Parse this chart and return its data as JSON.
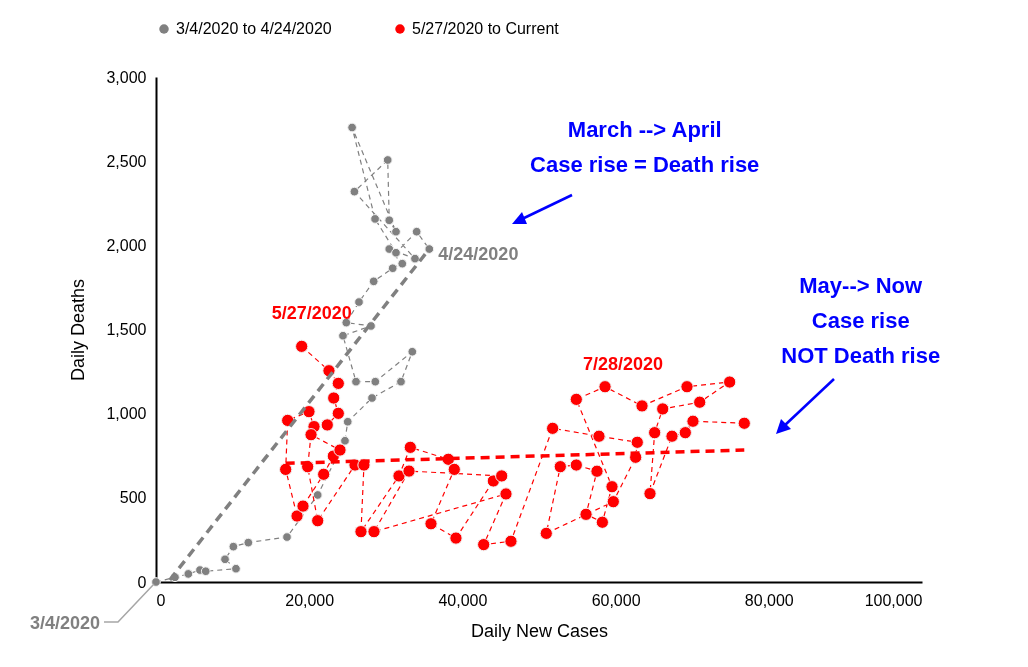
{
  "chart_data": {
    "type": "line",
    "xlabel": "Daily New Cases",
    "ylabel": "Daily Deaths",
    "xlim": [
      0,
      100000
    ],
    "ylim": [
      0,
      3000
    ],
    "xticks": [
      0,
      {
        "value": 20000,
        "label": "20,000"
      },
      {
        "value": 40000,
        "label": "40,000"
      },
      {
        "value": 60000,
        "label": "60,000"
      },
      {
        "value": 80000,
        "label": "80,000"
      },
      {
        "value": 100000,
        "label": "100,000"
      }
    ],
    "yticks": [
      0,
      500,
      {
        "value": 1000,
        "label": "1,000"
      },
      {
        "value": 1500,
        "label": "1,500"
      },
      {
        "value": 2000,
        "label": "2,000"
      },
      {
        "value": 2500,
        "label": "2,500"
      },
      {
        "value": 3000,
        "label": "3,000"
      }
    ],
    "grid": false,
    "legend": "top",
    "marker": "circle",
    "line_style": "dashed",
    "series": [
      {
        "name": "3/4/2020 to 4/24/2020",
        "color": "#808080",
        "x": [
          0,
          2480,
          4220,
          5740,
          6490,
          10440,
          9010,
          10100,
          12050,
          17100,
          21110,
          24670,
          25030,
          28200,
          31980,
          33460,
          28630,
          26110,
          24410,
          28070,
          24840,
          26500,
          28420,
          30900,
          32150,
          30450,
          33810,
          25900,
          30250,
          30450,
          31330,
          25600,
          28600,
          31330,
          34030,
          35680
        ],
        "values": [
          0,
          28,
          48,
          71,
          64,
          79,
          135,
          210,
          234,
          267,
          517,
          839,
          952,
          1093,
          1190,
          1368,
          1190,
          1190,
          1463,
          1521,
          1541,
          1663,
          1786,
          1864,
          1891,
          1978,
          1921,
          2319,
          2507,
          2149,
          2081,
          2700,
          2157,
          1956,
          2081,
          1978
        ]
      },
      {
        "name": "5/27/2020 to Current",
        "color": "#ff0000",
        "x": [
          19020,
          22580,
          23800,
          23200,
          23800,
          22360,
          20630,
          19970,
          17190,
          16930,
          18410,
          19190,
          21890,
          23150,
          24020,
          20240,
          19800,
          21110,
          25980,
          27150,
          26760,
          31720,
          33200,
          38160,
          38940,
          35900,
          39160,
          44040,
          45130,
          33030,
          28460,
          45690,
          42780,
          46340,
          51780,
          57830,
          62830,
          62620,
          59700,
          50950,
          52780,
          54870,
          57570,
          56140,
          58270,
          59530,
          54870,
          58620,
          63450,
          69320,
          74890,
          70980,
          66150,
          65100,
          64490,
          67360,
          69100,
          70100,
          76800
        ],
        "values": [
          1400,
          1255,
          1180,
          1093,
          1002,
          933,
          923,
          1012,
          960,
          669,
          392,
          451,
          640,
          748,
          784,
          875,
          685,
          364,
          695,
          695,
          299,
          630,
          800,
          729,
          669,
          346,
          261,
          600,
          630,
          659,
          299,
          523,
          222,
          242,
          913,
          866,
          830,
          741,
          477,
          289,
          685,
          695,
          658,
          402,
          355,
          566,
          1085,
          1160,
          1046,
          1160,
          1188,
          1068,
          1028,
          887,
          525,
          866,
          887,
          955,
          943
        ]
      },
      {
        "color": "#808080",
        "type": "line",
        "marker": "none",
        "x": [
          1800,
          35770
        ],
        "values": [
          12,
          1984
        ]
      },
      {
        "color": "#ff0000",
        "type": "line",
        "marker": "none",
        "x": [
          16930,
          76800
        ],
        "values": [
          705,
          784
        ]
      }
    ],
    "annotations": [
      {
        "text": "5/27/2020",
        "x": 19020,
        "y": 1400
      },
      {
        "text": "7/28/2020",
        "x": 58620,
        "y": 1160
      },
      {
        "text": "4/24/2020",
        "x": 35680,
        "y": 1978
      },
      {
        "text": "3/4/2020",
        "x": 0,
        "y": 0
      },
      "March --> April\nCase rise = Death rise",
      "May--> Now\nCase rise\nNOT Death rise"
    ]
  }
}
